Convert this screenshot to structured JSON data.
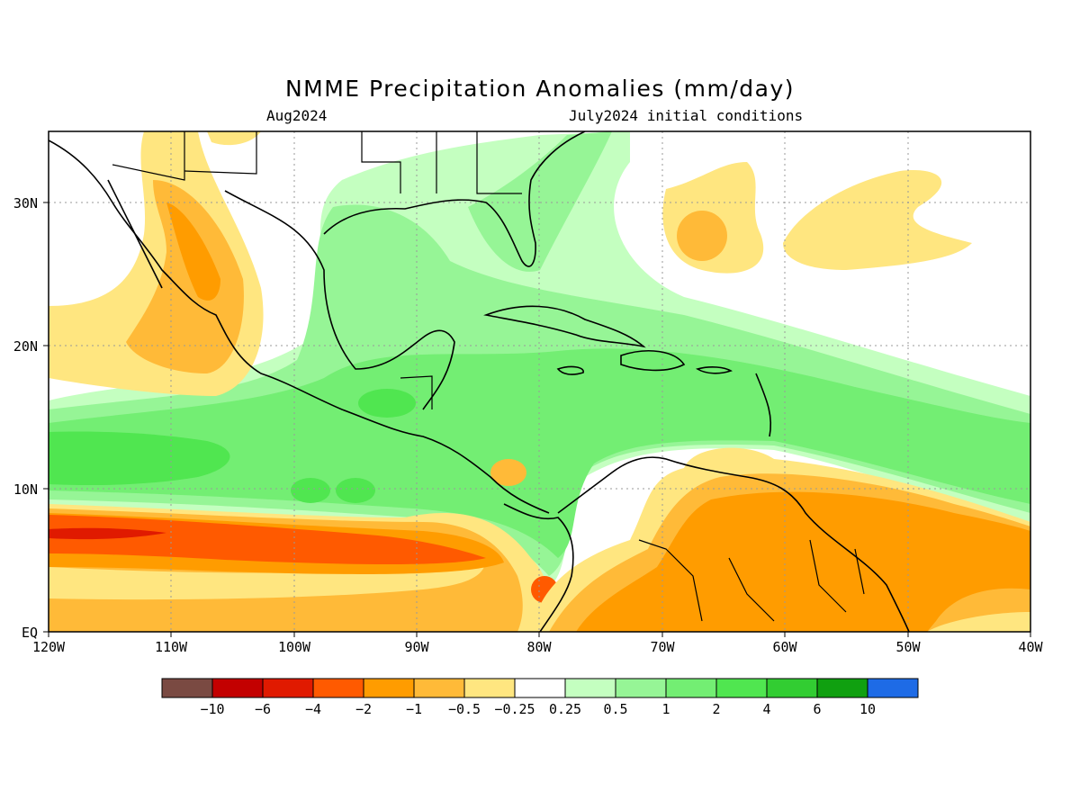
{
  "title": "NMME Precipitation Anomalies (mm/day)",
  "subtitle_left": "Aug2024",
  "subtitle_right": "July2024 initial conditions",
  "map": {
    "lon_range": [
      -120,
      -40
    ],
    "lat_range": [
      0,
      35
    ],
    "x_tick_labels": [
      "120W",
      "110W",
      "100W",
      "90W",
      "80W",
      "70W",
      "60W",
      "50W",
      "40W"
    ],
    "y_tick_labels": [
      "EQ",
      "10N",
      "20N",
      "30N"
    ],
    "grid": "dotted"
  },
  "colorbar": {
    "colors": [
      "#7a4a42",
      "#c30000",
      "#e01a00",
      "#ff5a00",
      "#ff9c00",
      "#ffba38",
      "#ffe680",
      "#ffffff",
      "#c4ffc0",
      "#96f596",
      "#73ee73",
      "#50e650",
      "#32cd32",
      "#10a010",
      "#1e6be6"
    ],
    "labels": [
      "−10",
      "−6",
      "−4",
      "−2",
      "−1",
      "−0.5",
      "−0.25",
      "0.25",
      "0.5",
      "1",
      "2",
      "4",
      "6",
      "10"
    ]
  }
}
